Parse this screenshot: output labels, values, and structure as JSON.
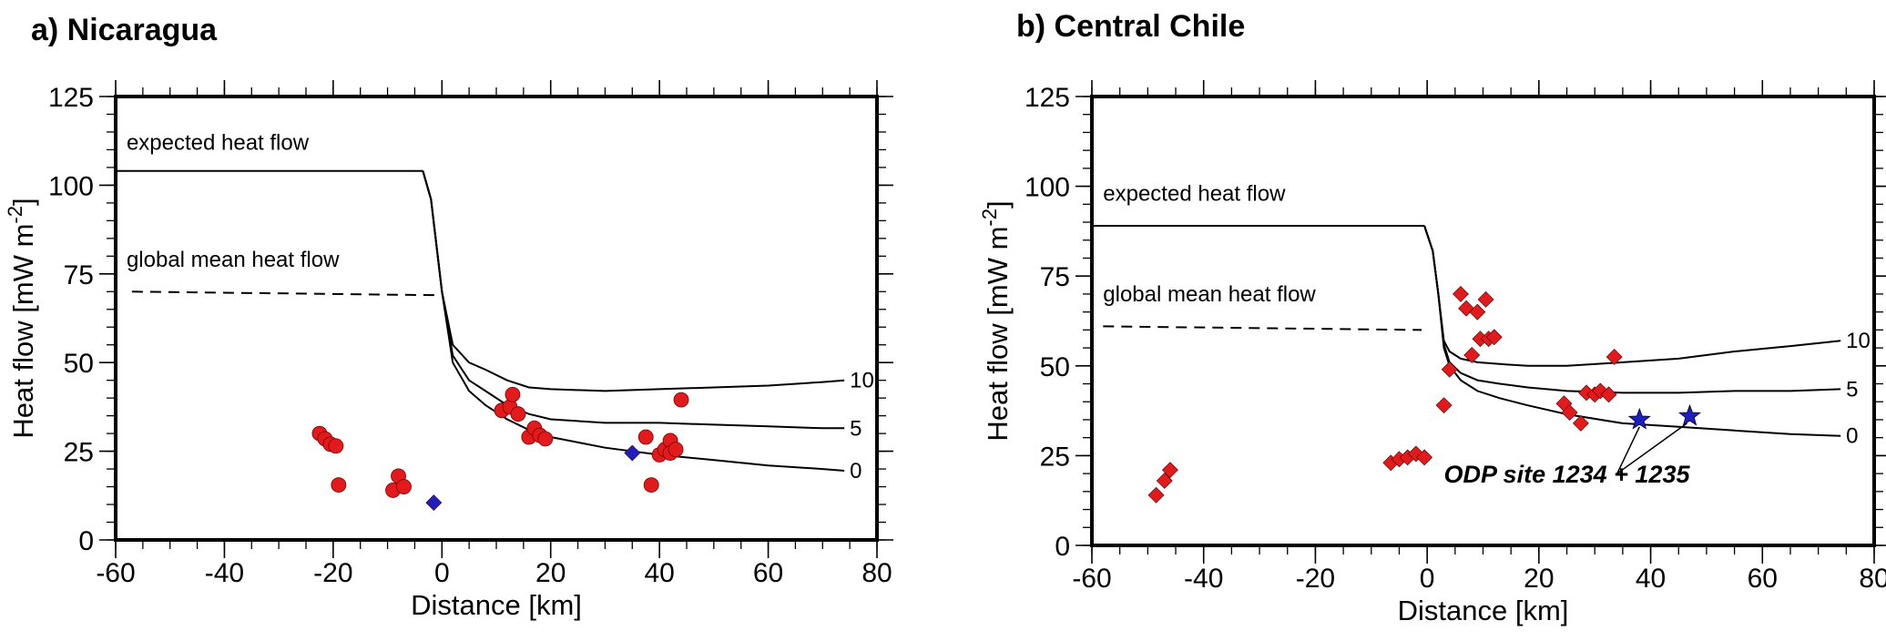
{
  "chart_data": [
    {
      "type": "scatter",
      "title": "a) Nicaragua",
      "xlabel": "Distance [km]",
      "ylabel_main": "Heat flow [mW m",
      "ylabel_sup": "-2",
      "ylabel_end": "]",
      "xlim": [
        -60,
        80
      ],
      "ylim": [
        0,
        125
      ],
      "xticks": [
        -60,
        -40,
        -20,
        0,
        20,
        40,
        60,
        80
      ],
      "yticks": [
        0,
        25,
        50,
        75,
        100,
        125
      ],
      "xtick_labels": [
        "-60",
        "-40",
        "-20",
        "0",
        "20",
        "40",
        "60",
        "80"
      ],
      "ytick_labels": [
        "0",
        "25",
        "50",
        "75",
        "100",
        "125"
      ],
      "annotations": [
        {
          "text": "expected heat flow",
          "x": -58,
          "y": 110
        },
        {
          "text": "global mean heat flow",
          "x": -58,
          "y": 77
        }
      ],
      "expected_heat_flow": {
        "x": [
          -60,
          -3.5
        ],
        "y": [
          104,
          104
        ]
      },
      "global_mean_heat_flow": {
        "x": [
          -57,
          -1
        ],
        "y": [
          70,
          69
        ]
      },
      "model_curves": [
        {
          "label": "10",
          "x": [
            -3.5,
            -2,
            0,
            2,
            5,
            8,
            12,
            16,
            20,
            30,
            40,
            50,
            60,
            70,
            74
          ],
          "y": [
            104,
            96,
            70,
            55,
            50,
            48,
            45,
            43,
            42.5,
            42,
            42.5,
            43,
            43.5,
            44.5,
            45
          ]
        },
        {
          "label": "5",
          "x": [
            -3.5,
            -2,
            0,
            2,
            5,
            8,
            12,
            16,
            20,
            30,
            40,
            50,
            60,
            70,
            74
          ],
          "y": [
            104,
            96,
            70,
            52,
            45,
            42,
            38,
            35.5,
            34,
            33,
            33,
            32.5,
            32,
            31.5,
            31.5
          ]
        },
        {
          "label": "0",
          "x": [
            -3.5,
            -2,
            0,
            2,
            5,
            8,
            12,
            16,
            20,
            30,
            40,
            50,
            60,
            70,
            74
          ],
          "y": [
            104,
            96,
            70,
            50,
            42,
            38,
            34,
            31,
            29,
            26,
            24,
            22.5,
            21,
            20,
            19.5
          ]
        }
      ],
      "series": [
        {
          "name": "",
          "marker": "circle",
          "color": "#e31a1c",
          "x": [
            -22.5,
            -21.5,
            -20.5,
            -19.5,
            -19,
            -9,
            -8,
            -7,
            11,
            12.5,
            13,
            14,
            16,
            17,
            18,
            19,
            37.5,
            38.5,
            40,
            41,
            42,
            42,
            43,
            44
          ],
          "y": [
            30,
            28.5,
            27,
            26.5,
            15.5,
            14,
            18,
            15,
            36.5,
            37.5,
            41,
            35.5,
            29,
            31.5,
            29.5,
            28.5,
            29,
            15.5,
            24,
            25.5,
            28,
            24.5,
            25.5,
            39.5
          ]
        },
        {
          "name": "",
          "marker": "diamond",
          "color": "#1f1fbf",
          "x": [
            -1.5,
            35
          ],
          "y": [
            10.5,
            24.5
          ]
        }
      ]
    },
    {
      "type": "scatter",
      "title": "b) Central Chile",
      "xlabel": "Distance [km]",
      "ylabel_main": "Heat flow [mW m",
      "ylabel_sup": "-2",
      "ylabel_end": "]",
      "xlim": [
        -60,
        80
      ],
      "ylim": [
        0,
        125
      ],
      "xticks": [
        -60,
        -40,
        -20,
        0,
        20,
        40,
        60,
        80
      ],
      "yticks": [
        0,
        25,
        50,
        75,
        100,
        125
      ],
      "xtick_labels": [
        "-60",
        "-40",
        "-20",
        "0",
        "20",
        "40",
        "60",
        "80"
      ],
      "ytick_labels": [
        "0",
        "25",
        "50",
        "75",
        "100",
        "125"
      ],
      "annotations": [
        {
          "text": "expected heat flow",
          "x": -58,
          "y": 96
        },
        {
          "text": "global mean heat flow",
          "x": -58,
          "y": 68
        }
      ],
      "site_label": {
        "text": "ODP site 1234 + 1235",
        "x": 3,
        "y": 17.5
      },
      "expected_heat_flow": {
        "x": [
          -60,
          -0.5
        ],
        "y": [
          89,
          89
        ]
      },
      "global_mean_heat_flow": {
        "x": [
          -58,
          -1
        ],
        "y": [
          61,
          60
        ]
      },
      "model_curves": [
        {
          "label": "10",
          "x": [
            -0.5,
            1,
            2,
            3,
            4,
            6,
            9,
            13,
            18,
            25,
            35,
            45,
            55,
            65,
            74
          ],
          "y": [
            89,
            82,
            70,
            57,
            54,
            52,
            51,
            50.5,
            50,
            50,
            51,
            52,
            54,
            55.5,
            57
          ]
        },
        {
          "label": "5",
          "x": [
            -0.5,
            1,
            2,
            3,
            4,
            6,
            9,
            13,
            18,
            25,
            35,
            45,
            55,
            65,
            74
          ],
          "y": [
            89,
            82,
            70,
            56,
            51,
            48,
            46,
            45,
            44,
            43,
            42.5,
            42.5,
            43,
            43,
            43.5
          ]
        },
        {
          "label": "0",
          "x": [
            -0.5,
            1,
            2,
            3,
            4,
            6,
            9,
            13,
            18,
            25,
            35,
            45,
            55,
            65,
            74
          ],
          "y": [
            89,
            82,
            70,
            55,
            50,
            46,
            43,
            41,
            39,
            36.5,
            34,
            33,
            32,
            31,
            30.5
          ]
        }
      ],
      "site_leader_lines": [
        {
          "from": [
            34,
            20
          ],
          "to": [
            38,
            33
          ]
        },
        {
          "from": [
            34,
            20
          ],
          "to": [
            46.5,
            34
          ]
        }
      ],
      "series": [
        {
          "name": "",
          "marker": "diamond",
          "color": "#e31a1c",
          "x": [
            -48.5,
            -47,
            -46,
            -6.5,
            -5,
            -3.5,
            -2,
            -0.5,
            3,
            4,
            6,
            7,
            8,
            9,
            9.5,
            10.5,
            11,
            12,
            24.5,
            25.5,
            27.5,
            28.5,
            30,
            31,
            32.5,
            33.5
          ],
          "y": [
            14,
            18,
            21,
            23,
            24,
            24.5,
            25.5,
            24.5,
            39,
            49,
            70,
            66,
            53,
            65,
            57.5,
            68.5,
            57.5,
            58,
            39.5,
            37,
            34,
            42.5,
            42,
            43,
            42,
            52.5
          ]
        },
        {
          "name": "",
          "marker": "star",
          "color": "#1f1fbf",
          "x": [
            38,
            47
          ],
          "y": [
            35,
            36
          ]
        }
      ]
    }
  ]
}
